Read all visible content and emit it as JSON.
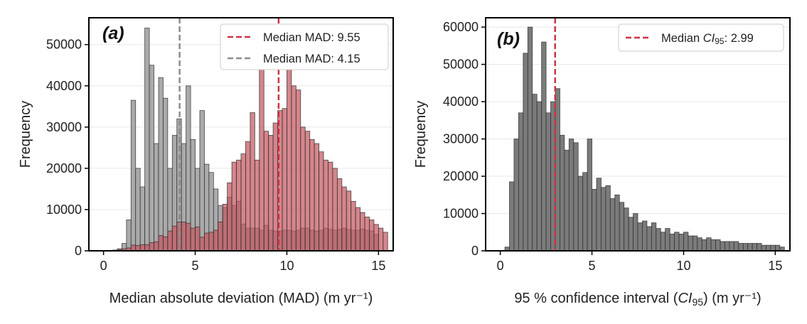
{
  "figure_colors": {
    "red_fill": "#c4575f",
    "red_line": "#cc3344",
    "gray_fill": "#a3a3a3",
    "gray_line": "#8c8c8c",
    "dark_fill": "#7b7b7b"
  },
  "chart_data": [
    {
      "type": "bar",
      "panel": "(a)",
      "xlabel": "Median absolute deviation (MAD) (m yr⁻¹)",
      "ylabel": "Frequency",
      "xlim": [
        -0.8,
        15.8
      ],
      "ylim": [
        0,
        56500
      ],
      "xticks": [
        0,
        5,
        10,
        15
      ],
      "xtick_labels": [
        "0",
        "5",
        "10",
        "15"
      ],
      "yticks": [
        0,
        10000,
        20000,
        30000,
        40000,
        50000
      ],
      "ytick_labels": [
        "0",
        "10000",
        "20000",
        "30000",
        "40000",
        "50000"
      ],
      "grid": "horizontal",
      "legend_position": "top-right",
      "bin_start": 0.25,
      "bin_width": 0.25,
      "series": [
        {
          "name": "gray distribution",
          "color": "#a3a3a3",
          "values": [
            0,
            200,
            500,
            1800,
            7500,
            36500,
            20000,
            15500,
            54000,
            45000,
            26000,
            42000,
            37000,
            20000,
            28000,
            32000,
            26000,
            40000,
            27000,
            20000,
            34000,
            21000,
            19000,
            15000,
            11000,
            10500,
            13000,
            11000,
            12000,
            6500,
            5500,
            5500,
            5500,
            5000,
            6200,
            5000,
            4800,
            4800,
            5000,
            5000,
            4800,
            5000,
            5500,
            5500,
            5000,
            4800,
            5000,
            5500,
            5200,
            5000,
            5200,
            5500,
            5200,
            5000,
            5000,
            5300,
            5000,
            4800,
            4000
          ]
        },
        {
          "name": "red distribution",
          "color": "#c4575f",
          "values": [
            0,
            0,
            300,
            500,
            700,
            1400,
            1300,
            1500,
            1500,
            2000,
            2200,
            3700,
            3400,
            4800,
            6000,
            7000,
            7000,
            6700,
            5500,
            5800,
            3300,
            4300,
            4500,
            5000,
            7000,
            11300,
            16500,
            21500,
            22000,
            23500,
            26500,
            33500,
            22000,
            44000,
            29000,
            28000,
            31000,
            34000,
            34500,
            47000,
            40000,
            39000,
            30000,
            29000,
            27000,
            26000,
            24000,
            22000,
            21500,
            20000,
            17500,
            15500,
            14500,
            12000,
            10500,
            9300,
            8200,
            7500,
            6400,
            5500,
            4500
          ]
        }
      ],
      "reference_lines": [
        {
          "label": "Median MAD: 9.55",
          "value": 9.55,
          "color": "#cc3344"
        },
        {
          "label": "Median MAD: 4.15",
          "value": 4.15,
          "color": "#8c8c8c"
        }
      ]
    },
    {
      "type": "bar",
      "panel": "(b)",
      "xlabel_prefix": "95 % confidence interval (",
      "xlabel_var": "CI",
      "xlabel_sub": "95",
      "xlabel_suffix": ") (m yr⁻¹)",
      "ylabel": "Frequency",
      "xlim": [
        -0.8,
        15.8
      ],
      "ylim": [
        0,
        62500
      ],
      "xticks": [
        0,
        5,
        10,
        15
      ],
      "xtick_labels": [
        "0",
        "5",
        "10",
        "15"
      ],
      "yticks": [
        0,
        10000,
        20000,
        30000,
        40000,
        50000,
        60000
      ],
      "ytick_labels": [
        "0",
        "10000",
        "20000",
        "30000",
        "40000",
        "50000",
        "60000"
      ],
      "grid": "horizontal",
      "legend_position": "top-right",
      "bin_start": 0.25,
      "bin_width": 0.25,
      "series": [
        {
          "name": "CI95 distribution",
          "color": "#7b7b7b",
          "values": [
            1000,
            18500,
            30000,
            37000,
            53000,
            60000,
            42000,
            40000,
            56000,
            37000,
            40000,
            43500,
            31000,
            27000,
            30000,
            29000,
            20000,
            21000,
            30000,
            16500,
            19500,
            17000,
            17500,
            14000,
            15000,
            13000,
            11500,
            9000,
            10000,
            7500,
            8000,
            6500,
            7500,
            6000,
            5000,
            6000,
            4500,
            5000,
            4500,
            5000,
            4000,
            4000,
            3500,
            3000,
            3500,
            3000,
            3000,
            2500,
            2500,
            2500,
            2500,
            2000,
            2000,
            2000,
            2000,
            2000,
            1500,
            1500,
            1500,
            1500,
            1000
          ]
        }
      ],
      "reference_lines": [
        {
          "label_var": "CI",
          "label_sub": "95",
          "label_suffix": ": 2.99",
          "label_prefix": "Median ",
          "value": 2.99,
          "color": "#cc3344"
        }
      ]
    }
  ]
}
